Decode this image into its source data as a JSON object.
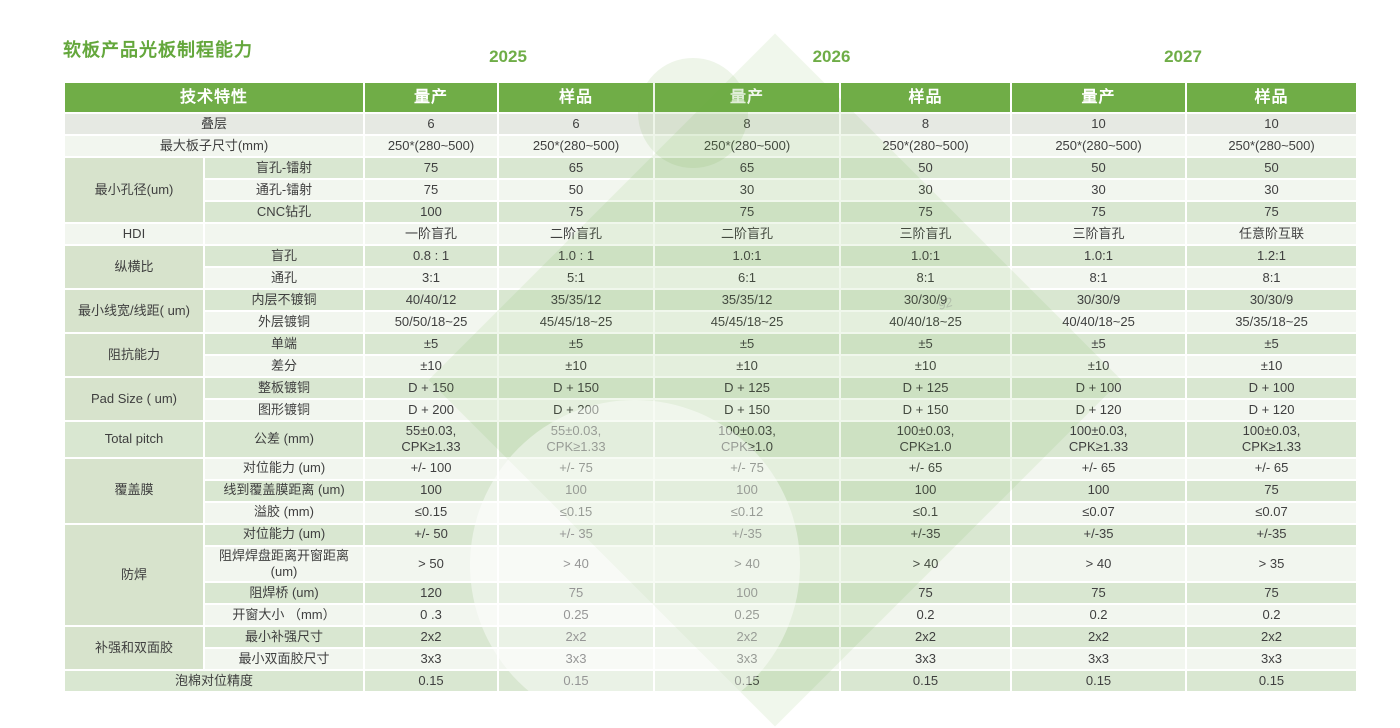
{
  "page": {
    "title": "软板产品光板制程能力"
  },
  "years": [
    {
      "label": "2025"
    },
    {
      "label": "2026"
    },
    {
      "label": "2027"
    }
  ],
  "colors": {
    "header_green": "#70AD47",
    "title_green": "#64A73C",
    "band_green": "#D9E7D1",
    "band_light": "#F2F6EF",
    "band_gray": "#E6E9E3",
    "group_label_bg": "#D7E3CC",
    "text": "#3F3F3F"
  },
  "watermark": {
    "text": "92"
  },
  "table": {
    "header": {
      "feature": "技术特性",
      "columns": [
        "量产",
        "样品",
        "量产",
        "样品",
        "量产",
        "样品"
      ]
    },
    "rows": [
      {
        "label": "叠层",
        "label_cols": 2,
        "band": "gray",
        "values": [
          "6",
          "6",
          "8",
          "8",
          "10",
          "10"
        ]
      },
      {
        "label": "最大板子尺寸(mm)",
        "label_cols": 2,
        "band": "light",
        "values": [
          "250*(280~500)",
          "250*(280~500)",
          "250*(280~500)",
          "250*(280~500)",
          "250*(280~500)",
          "250*(280~500)"
        ]
      },
      {
        "label": "最小孔径(um)",
        "label_rows": 3,
        "sub": "盲孔-镭射",
        "band": "green",
        "values": [
          "75",
          "65",
          "65",
          "50",
          "50",
          "50"
        ]
      },
      {
        "sub": "通孔-镭射",
        "band": "light",
        "values": [
          "75",
          "50",
          "30",
          "30",
          "30",
          "30"
        ]
      },
      {
        "sub": "CNC钻孔",
        "band": "green",
        "values": [
          "100",
          "75",
          "75",
          "75",
          "75",
          "75"
        ]
      },
      {
        "label": "HDI",
        "sub": "",
        "band": "light",
        "values": [
          "一阶盲孔",
          "二阶盲孔",
          "二阶盲孔",
          "三阶盲孔",
          "三阶盲孔",
          "任意阶互联"
        ]
      },
      {
        "label": "纵横比",
        "label_rows": 2,
        "sub": "盲孔",
        "band": "green",
        "values": [
          "0.8 : 1",
          "1.0 : 1",
          "1.0:1",
          "1.0:1",
          "1.0:1",
          "1.2:1"
        ]
      },
      {
        "sub": "通孔",
        "band": "light",
        "values": [
          "3:1",
          "5:1",
          "6:1",
          "8:1",
          "8:1",
          "8:1"
        ]
      },
      {
        "label": "最小线宽/线距( um)",
        "label_rows": 2,
        "sub": "内层不镀铜",
        "band": "green",
        "values": [
          "40/40/12",
          "35/35/12",
          "35/35/12",
          "30/30/9",
          "30/30/9",
          "30/30/9"
        ]
      },
      {
        "sub": "外层镀铜",
        "band": "light",
        "values": [
          "50/50/18~25",
          "45/45/18~25",
          "45/45/18~25",
          "40/40/18~25",
          "40/40/18~25",
          "35/35/18~25"
        ]
      },
      {
        "label": "阻抗能力",
        "label_rows": 2,
        "sub": "单端",
        "band": "green",
        "values": [
          "±5",
          "±5",
          "±5",
          "±5",
          "±5",
          "±5"
        ]
      },
      {
        "sub": "差分",
        "band": "light",
        "values": [
          "±10",
          "±10",
          "±10",
          "±10",
          "±10",
          "±10"
        ]
      },
      {
        "label": "Pad Size ( um)",
        "label_rows": 2,
        "sub": "整板镀铜",
        "band": "green",
        "values": [
          "D + 150",
          "D + 150",
          "D + 125",
          "D + 125",
          "D + 100",
          "D + 100"
        ]
      },
      {
        "sub": "图形镀铜",
        "band": "light",
        "values": [
          "D + 200",
          "D + 200",
          "D + 150",
          "D + 150",
          "D + 120",
          "D + 120"
        ]
      },
      {
        "label": "Total pitch",
        "sub": "公差 (mm)",
        "band": "green",
        "values": [
          "55±0.03,\nCPK≥1.33",
          "55±0.03,\nCPK≥1.33",
          "100±0.03,\nCPK≥1.0",
          "100±0.03,\nCPK≥1.0",
          "100±0.03,\nCPK≥1.33",
          "100±0.03,\nCPK≥1.33"
        ]
      },
      {
        "label": "覆盖膜",
        "label_rows": 3,
        "sub": "对位能力 (um)",
        "band": "light",
        "values": [
          "+/- 100",
          "+/- 75",
          "+/- 75",
          "+/- 65",
          "+/- 65",
          "+/- 65"
        ]
      },
      {
        "sub": "线到覆盖膜距离 (um)",
        "band": "green",
        "values": [
          "100",
          "100",
          "100",
          "100",
          "100",
          "75"
        ]
      },
      {
        "sub": "溢胶 (mm)",
        "band": "light",
        "values": [
          "≤0.15",
          "≤0.15",
          "≤0.12",
          "≤0.1",
          "≤0.07",
          "≤0.07"
        ]
      },
      {
        "label": "防焊",
        "label_rows": 4,
        "sub": "对位能力 (um)",
        "band": "green",
        "values": [
          "+/- 50",
          "+/- 35",
          "+/-35",
          "+/-35",
          "+/-35",
          "+/-35"
        ]
      },
      {
        "sub": "阻焊焊盘距离开窗距离 (um)",
        "band": "light",
        "values": [
          "> 50",
          "> 40",
          "> 40",
          "> 40",
          "> 40",
          "> 35"
        ]
      },
      {
        "sub": "阻焊桥 (um)",
        "band": "green",
        "values": [
          "120",
          "75",
          "100",
          "75",
          "75",
          "75"
        ]
      },
      {
        "sub": "开窗大小 （mm）",
        "band": "light",
        "values": [
          "0 .3",
          "0.25",
          "0.25",
          "0.2",
          "0.2",
          "0.2"
        ]
      },
      {
        "label": "补强和双面胶",
        "label_rows": 2,
        "sub": "最小补强尺寸",
        "band": "green",
        "values": [
          "2x2",
          "2x2",
          "2x2",
          "2x2",
          "2x2",
          "2x2"
        ]
      },
      {
        "sub": "最小双面胶尺寸",
        "band": "light",
        "values": [
          "3x3",
          "3x3",
          "3x3",
          "3x3",
          "3x3",
          "3x3"
        ]
      },
      {
        "label": "泡棉对位精度",
        "label_cols": 2,
        "band": "green",
        "values": [
          "0.15",
          "0.15",
          "0.15",
          "0.15",
          "0.15",
          "0.15"
        ]
      }
    ]
  }
}
